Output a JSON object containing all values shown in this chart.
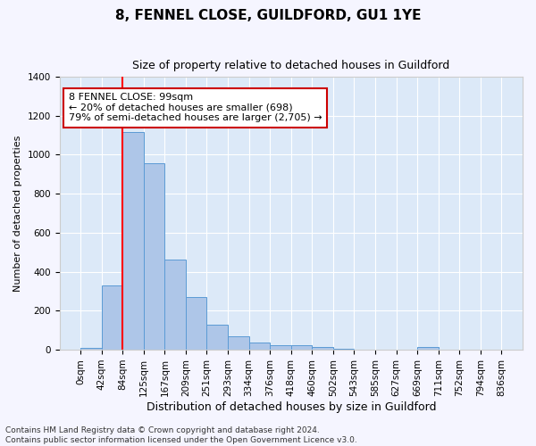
{
  "title1": "8, FENNEL CLOSE, GUILDFORD, GU1 1YE",
  "title2": "Size of property relative to detached houses in Guildford",
  "xlabel": "Distribution of detached houses by size in Guildford",
  "ylabel": "Number of detached properties",
  "bar_data": [
    10,
    330,
    1115,
    955,
    460,
    270,
    130,
    68,
    38,
    22,
    22,
    15,
    5,
    0,
    0,
    0,
    12,
    0,
    0,
    0
  ],
  "categories": [
    "0sqm",
    "42sqm",
    "84sqm",
    "125sqm",
    "167sqm",
    "209sqm",
    "251sqm",
    "293sqm",
    "334sqm",
    "376sqm",
    "418sqm",
    "460sqm",
    "502sqm",
    "543sqm",
    "585sqm",
    "627sqm",
    "669sqm",
    "711sqm",
    "752sqm",
    "794sqm",
    "836sqm"
  ],
  "bar_color": "#aec6e8",
  "bar_edge_color": "#5b9bd5",
  "red_line_x": 2.0,
  "annotation_text": "8 FENNEL CLOSE: 99sqm\n← 20% of detached houses are smaller (698)\n79% of semi-detached houses are larger (2,705) →",
  "annotation_box_facecolor": "#ffffff",
  "annotation_box_edgecolor": "#cc0000",
  "ylim": [
    0,
    1400
  ],
  "yticks": [
    0,
    200,
    400,
    600,
    800,
    1000,
    1200,
    1400
  ],
  "plot_bg_color": "#dce9f8",
  "grid_color": "#ffffff",
  "fig_bg_color": "#f5f5ff",
  "footer": "Contains HM Land Registry data © Crown copyright and database right 2024.\nContains public sector information licensed under the Open Government Licence v3.0.",
  "title1_fontsize": 11,
  "title2_fontsize": 9,
  "xlabel_fontsize": 9,
  "ylabel_fontsize": 8,
  "tick_fontsize": 7.5,
  "annotation_fontsize": 8,
  "footer_fontsize": 6.5
}
